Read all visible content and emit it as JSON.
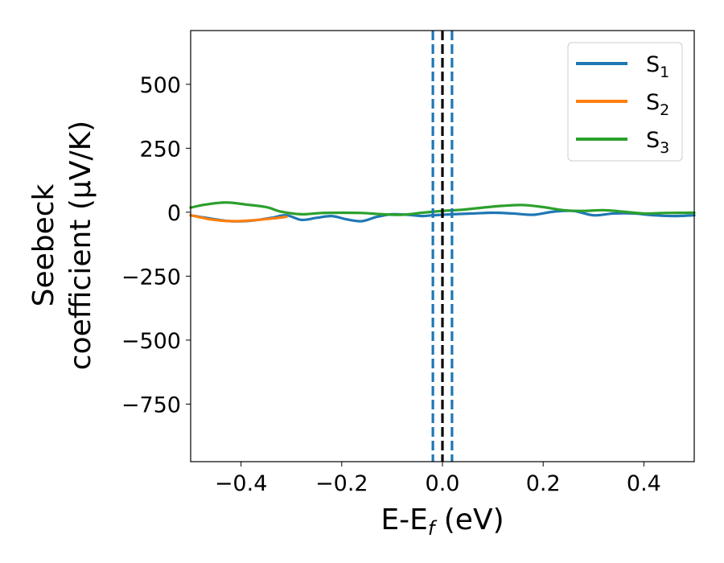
{
  "chart_data": {
    "type": "line",
    "xlabel": {
      "main": "E-E",
      "sub": "f",
      "unit": " (eV)"
    },
    "ylabel": {
      "line1": "Seebeck",
      "line2": "coefficient  (μV/K)"
    },
    "xlim": [
      -0.5,
      0.5
    ],
    "ylim": [
      -975,
      710
    ],
    "xticks": [
      -0.4,
      -0.2,
      0.0,
      0.2,
      0.4
    ],
    "xtick_labels": [
      "−0.4",
      "−0.2",
      "0.0",
      "0.2",
      "0.4"
    ],
    "yticks": [
      500,
      250,
      0,
      -250,
      -500,
      -750
    ],
    "ytick_labels": [
      "500",
      "250",
      "0",
      "−250",
      "−500",
      "−750"
    ],
    "grid": false,
    "legend_position": "top-right",
    "series": [
      {
        "name": "S",
        "sub": "1",
        "color": "#1f77b4",
        "x": [
          -0.5,
          -0.46,
          -0.42,
          -0.38,
          -0.34,
          -0.31,
          -0.28,
          -0.25,
          -0.22,
          -0.19,
          -0.16,
          -0.13,
          -0.1,
          -0.07,
          -0.04,
          -0.02,
          0.0,
          0.02,
          0.06,
          0.1,
          0.14,
          0.18,
          0.22,
          0.26,
          0.3,
          0.34,
          0.38,
          0.42,
          0.46,
          0.5
        ],
        "y": [
          -12,
          -25,
          -35,
          -33,
          -22,
          -12,
          -30,
          -22,
          -15,
          -28,
          -35,
          -18,
          -8,
          -10,
          -15,
          -12,
          -10,
          -8,
          -5,
          -2,
          -5,
          -10,
          2,
          5,
          -12,
          -5,
          -5,
          -12,
          -15,
          -12
        ]
      },
      {
        "name": "S",
        "sub": "2",
        "color": "#ff7f0e",
        "x": [
          -0.5,
          -0.46,
          -0.42,
          -0.38,
          -0.34,
          -0.31
        ],
        "y": [
          -12,
          -28,
          -35,
          -32,
          -25,
          -18
        ]
      },
      {
        "name": "S",
        "sub": "3",
        "color": "#2ca02c",
        "x": [
          -0.5,
          -0.47,
          -0.43,
          -0.39,
          -0.35,
          -0.32,
          -0.28,
          -0.24,
          -0.2,
          -0.16,
          -0.12,
          -0.08,
          -0.04,
          0.0,
          0.04,
          0.08,
          0.12,
          0.16,
          0.2,
          0.24,
          0.28,
          0.32,
          0.36,
          0.4,
          0.44,
          0.5
        ],
        "y": [
          18,
          30,
          38,
          30,
          20,
          2,
          -8,
          -3,
          -2,
          -3,
          -8,
          -10,
          -2,
          5,
          10,
          18,
          25,
          28,
          20,
          8,
          5,
          8,
          2,
          -5,
          -3,
          -2
        ]
      }
    ],
    "vlines": [
      {
        "x": 0.0,
        "color": "#000000",
        "style": "dashed"
      },
      {
        "x": -0.019,
        "color": "#1f77b4",
        "style": "dashed"
      },
      {
        "x": 0.019,
        "color": "#1f77b4",
        "style": "dashed"
      }
    ]
  }
}
